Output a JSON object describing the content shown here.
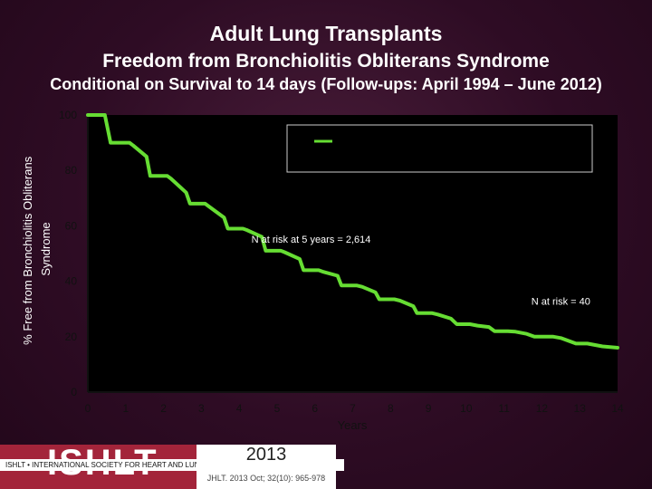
{
  "slide": {
    "title": "Adult Lung Transplants",
    "subtitle": "Freedom from Bronchiolitis Obliterans Syndrome",
    "subtitle2": "Conditional on Survival to 14 days (Follow-ups: April 1994 – June 2012)"
  },
  "colors": {
    "background": "#3a1230",
    "plot_background": "#000000",
    "series_line": "#66dd33",
    "logo": "#a3243a"
  },
  "chart_data": {
    "type": "line",
    "xlabel": "Years",
    "ylabel": "% Free from Bronchiolitis Obliterans Syndrome",
    "xlim": [
      0,
      14
    ],
    "ylim": [
      0,
      100
    ],
    "x_ticks": [
      "0",
      "1",
      "2",
      "3",
      "4",
      "5",
      "6",
      "7",
      "8",
      "9",
      "10",
      "11",
      "12",
      "13",
      "14"
    ],
    "y_ticks": [
      "0",
      "20",
      "40",
      "60",
      "80",
      "100"
    ],
    "grid": false,
    "legend_position": "top-right",
    "legend_entries": [
      ""
    ],
    "series": [
      {
        "x": [
          0,
          0.45,
          0.6,
          1.1,
          1.2,
          1.55,
          1.65,
          2.1,
          2.2,
          2.6,
          2.7,
          3.1,
          3.2,
          3.6,
          3.7,
          4.1,
          4.2,
          4.6,
          4.7,
          5.1,
          5.2,
          5.6,
          5.7,
          6.1,
          6.2,
          6.6,
          6.7,
          7.1,
          7.25,
          7.6,
          7.7,
          8.1,
          8.25,
          8.6,
          8.7,
          9.1,
          9.25,
          9.6,
          9.75,
          10.1,
          10.3,
          10.6,
          10.75,
          11.1,
          11.3,
          11.6,
          11.8,
          12.3,
          12.5,
          12.9,
          13.2,
          13.6,
          14
        ],
        "y": [
          100,
          100,
          90,
          90,
          89,
          85,
          78,
          78,
          77,
          72,
          68,
          68,
          67,
          63,
          59,
          59,
          58.5,
          56,
          51,
          51,
          50.5,
          48,
          44,
          44,
          43.5,
          42,
          38.5,
          38.5,
          38,
          36,
          33.5,
          33.5,
          33,
          31,
          28.5,
          28.5,
          28,
          26.5,
          24.5,
          24.5,
          24,
          23.5,
          22,
          22,
          21.8,
          21,
          20,
          20,
          19.5,
          17.5,
          17.5,
          16.5,
          16
        ]
      }
    ],
    "annotations": [
      {
        "text": "N at risk at 5 years = 2,614",
        "x": 5.9,
        "y": 54
      },
      {
        "text": "N at risk = 40",
        "x": 12.5,
        "y": 31.5
      }
    ]
  },
  "footer": {
    "logo": "ISHLT",
    "logo_tagline": "ISHLT • INTERNATIONAL SOCIETY FOR HEART AND LUNG TRANSPLANTATION",
    "year": "2013",
    "citation": "JHLT. 2013 Oct; 32(10): 965-978"
  }
}
